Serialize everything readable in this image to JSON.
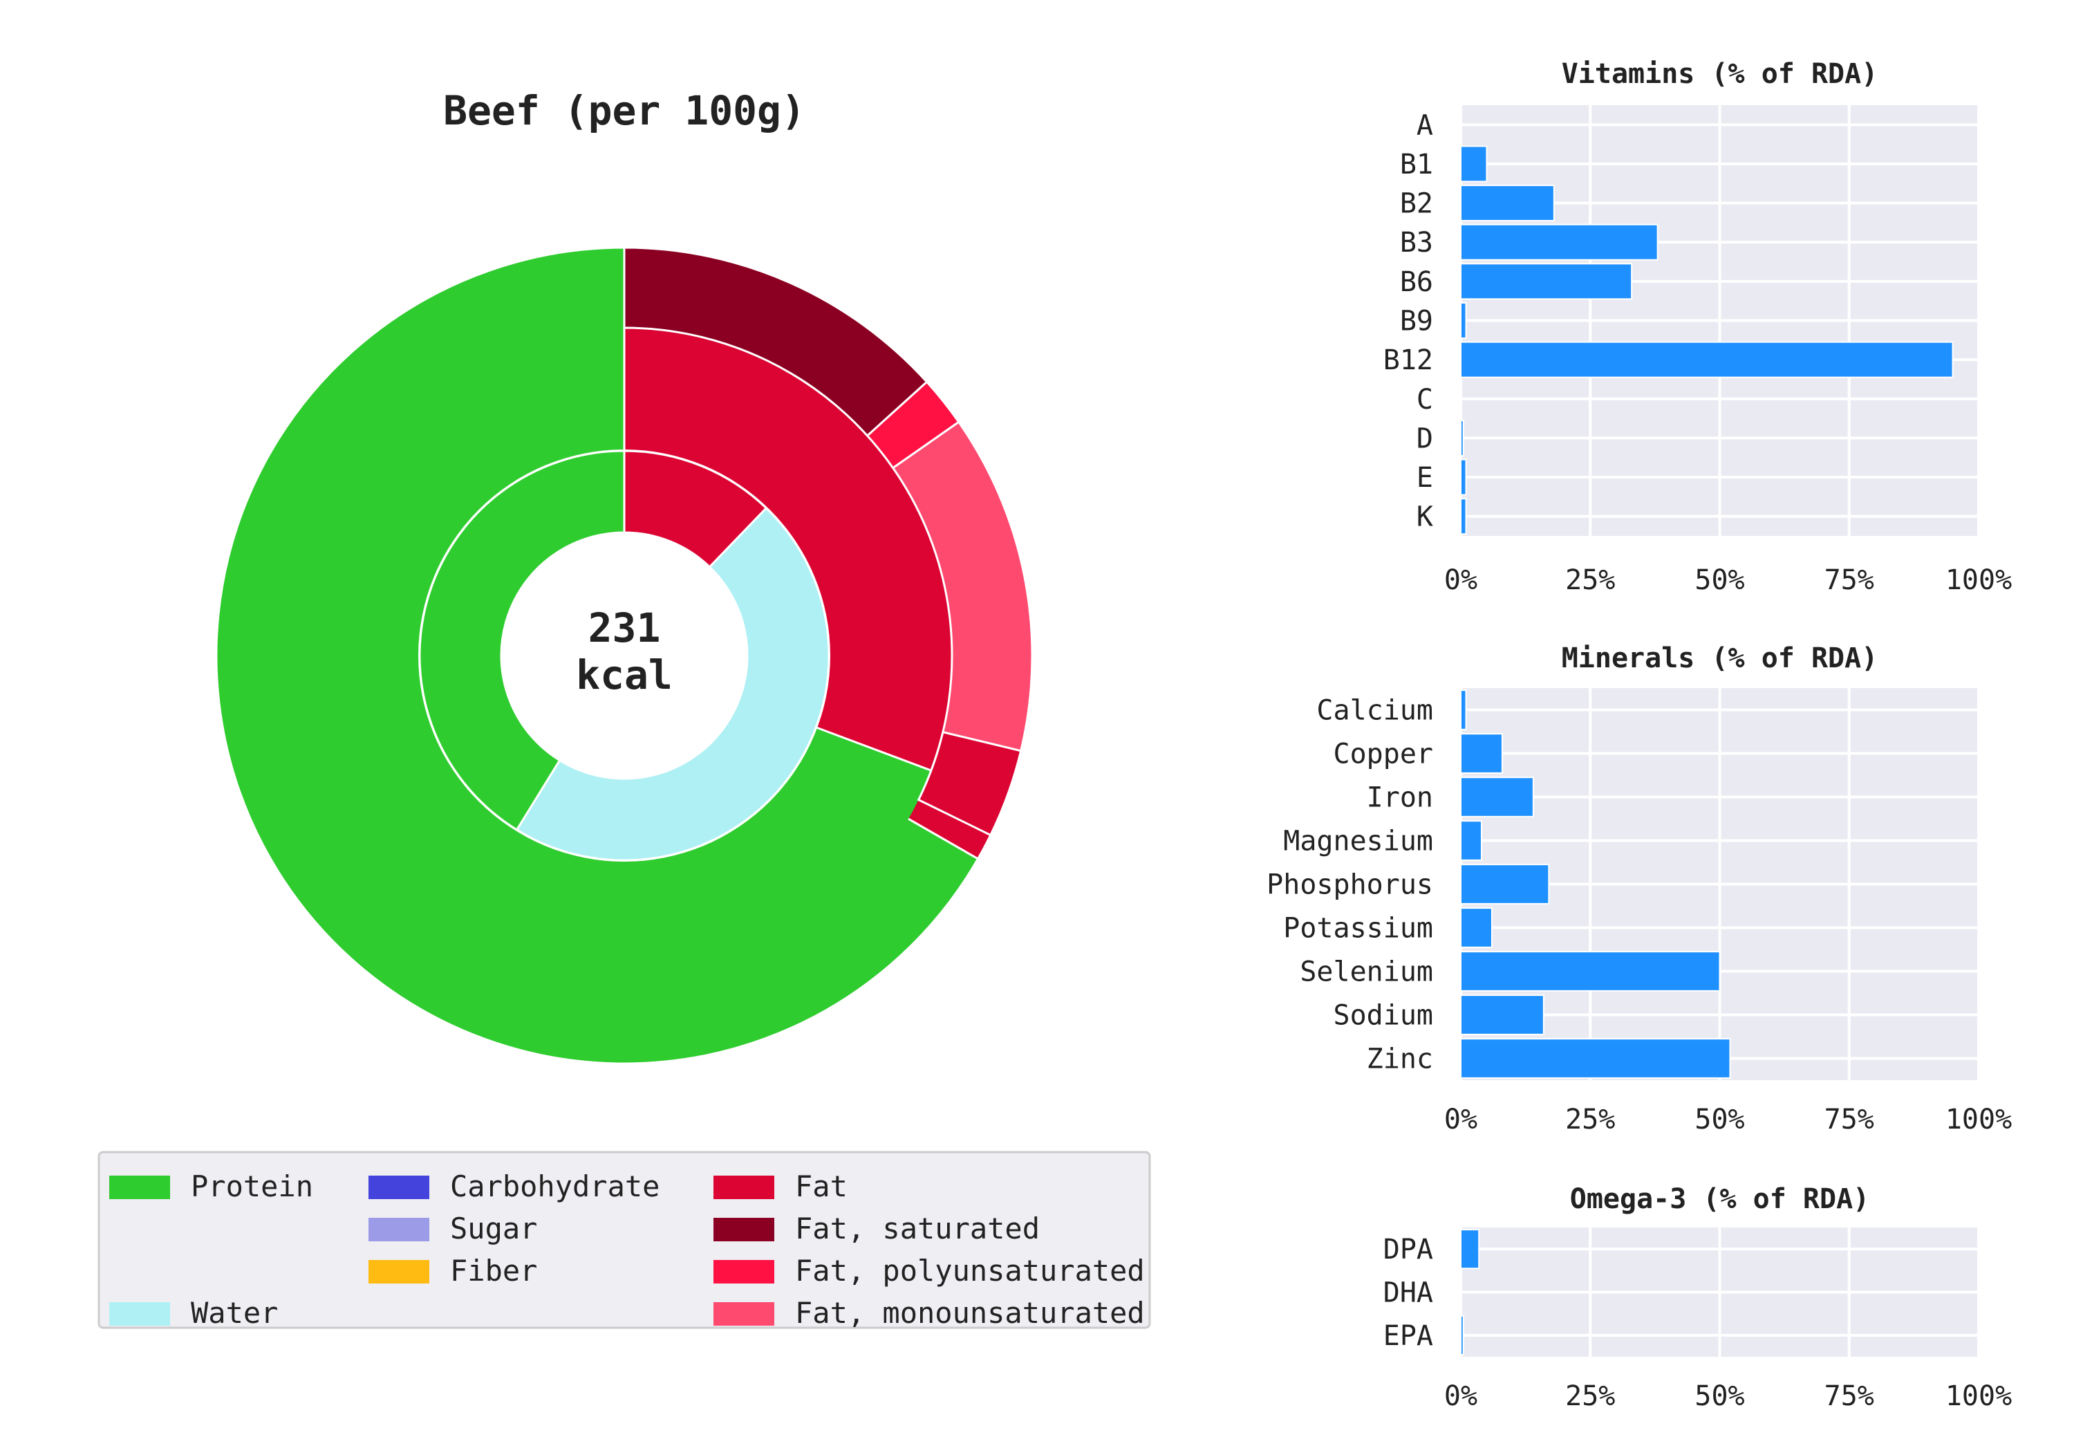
{
  "donut": {
    "title": "Beef (per 100g)",
    "center_value": "231",
    "center_unit": "kcal"
  },
  "legend": {
    "columns": [
      [
        {
          "label": "Protein",
          "color": "#2ecc2e"
        },
        {
          "label": "",
          "color": null
        },
        {
          "label": "",
          "color": null
        },
        {
          "label": "Water",
          "color": "#aef0f4"
        }
      ],
      [
        {
          "label": "Carbohydrate",
          "color": "#4444dd"
        },
        {
          "label": "Sugar",
          "color": "#9b9be8"
        },
        {
          "label": "Fiber",
          "color": "#ffbb11"
        },
        {
          "label": "",
          "color": null
        }
      ],
      [
        {
          "label": "Fat",
          "color": "#dc0433"
        },
        {
          "label": "Fat, saturated",
          "color": "#8b0022"
        },
        {
          "label": "Fat, polyunsaturated",
          "color": "#ff1144"
        },
        {
          "label": "Fat, monounsaturated",
          "color": "#ff4a70"
        }
      ]
    ]
  },
  "chart_data": [
    {
      "type": "donut",
      "title": "Beef (per 100g)",
      "unit": "percent of total",
      "outer_ring": [
        {
          "label": "Protein",
          "value": 66.7,
          "color": "#2ecc2e"
        },
        {
          "label": "Fat",
          "value": 3.5,
          "color": "#dc0433"
        },
        {
          "label": "Fat, monounsaturated",
          "value": 14.5,
          "color": "#ff4a70"
        },
        {
          "label": "Fat, polyunsaturated",
          "value": 2.0,
          "color": "#ff1144"
        },
        {
          "label": "Fat, saturated",
          "value": 13.3,
          "color": "#8b0022"
        }
      ],
      "middle_ring": [
        {
          "label": "Fat",
          "value": 30.7,
          "color": "#dc0433"
        }
      ],
      "inner_ring": [
        {
          "label": "Fat",
          "value": 12.2,
          "color": "#dc0433"
        },
        {
          "label": "Water",
          "value": 46.6,
          "color": "#aef0f4"
        },
        {
          "label": "Protein",
          "value": 41.2,
          "color": "#2ecc2e"
        }
      ],
      "center_text": "231 kcal"
    },
    {
      "type": "bar",
      "orientation": "horizontal",
      "title": "Vitamins (% of RDA)",
      "categories": [
        "A",
        "B1",
        "B2",
        "B3",
        "B6",
        "B9",
        "B12",
        "C",
        "D",
        "E",
        "K"
      ],
      "values": [
        0,
        5,
        18,
        38,
        33,
        1,
        95,
        0,
        0.5,
        1,
        1
      ],
      "xlim": [
        0,
        100
      ],
      "xticks": [
        "0%",
        "25%",
        "50%",
        "75%",
        "100%"
      ],
      "color": "#1e90ff",
      "grid": true
    },
    {
      "type": "bar",
      "orientation": "horizontal",
      "title": "Minerals (% of RDA)",
      "categories": [
        "Calcium",
        "Copper",
        "Iron",
        "Magnesium",
        "Phosphorus",
        "Potassium",
        "Selenium",
        "Sodium",
        "Zinc"
      ],
      "values": [
        1,
        8,
        14,
        4,
        17,
        6,
        50,
        16,
        52
      ],
      "xlim": [
        0,
        100
      ],
      "xticks": [
        "0%",
        "25%",
        "50%",
        "75%",
        "100%"
      ],
      "color": "#1e90ff",
      "grid": true
    },
    {
      "type": "bar",
      "orientation": "horizontal",
      "title": "Omega-3 (% of RDA)",
      "categories": [
        "DPA",
        "DHA",
        "EPA"
      ],
      "values": [
        3.5,
        0,
        0.5
      ],
      "xlim": [
        0,
        100
      ],
      "xticks": [
        "0%",
        "25%",
        "50%",
        "75%",
        "100%"
      ],
      "color": "#1e90ff",
      "grid": true
    }
  ]
}
